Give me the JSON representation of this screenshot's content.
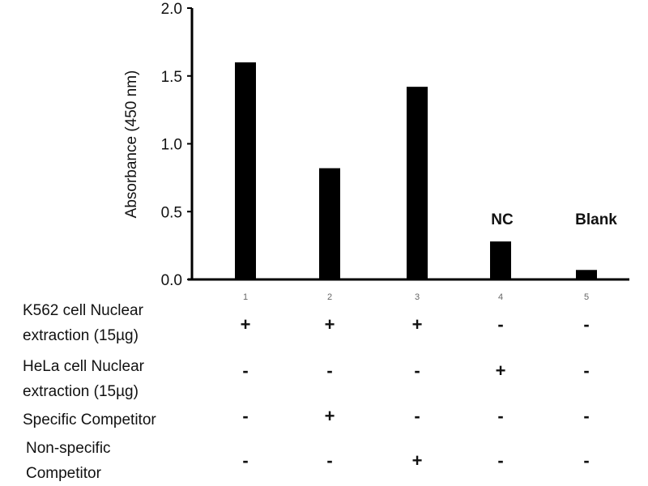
{
  "chart_data": {
    "type": "bar",
    "title": "",
    "xlabel": "",
    "ylabel": "Absorbance (450 nm)",
    "ylim": [
      0,
      2.0
    ],
    "yticks": [
      "0.0",
      "0.5",
      "1.0",
      "1.5",
      "2.0"
    ],
    "categories": [
      "1",
      "2",
      "3",
      "4",
      "5"
    ],
    "values": [
      1.6,
      0.82,
      1.42,
      0.28,
      0.07
    ],
    "bar_color": "#000000",
    "annotations": [
      {
        "category": "4",
        "text": "NC"
      },
      {
        "category": "5",
        "text": "Blank"
      }
    ],
    "condition_table": [
      {
        "label": [
          "K562 cell Nuclear",
          "extraction (15µg)"
        ],
        "signs": [
          "+",
          "+",
          "+",
          "-",
          "-"
        ]
      },
      {
        "label": [
          "HeLa cell Nuclear",
          "extraction (15µg)"
        ],
        "signs": [
          "-",
          "-",
          "-",
          "+",
          "-"
        ]
      },
      {
        "label": [
          "Specific Competitor"
        ],
        "signs": [
          "-",
          "+",
          "-",
          "-",
          "-"
        ]
      },
      {
        "label": [
          "Non-specific",
          "Competitor"
        ],
        "signs": [
          "-",
          "-",
          "+",
          "-",
          "-"
        ]
      }
    ]
  }
}
